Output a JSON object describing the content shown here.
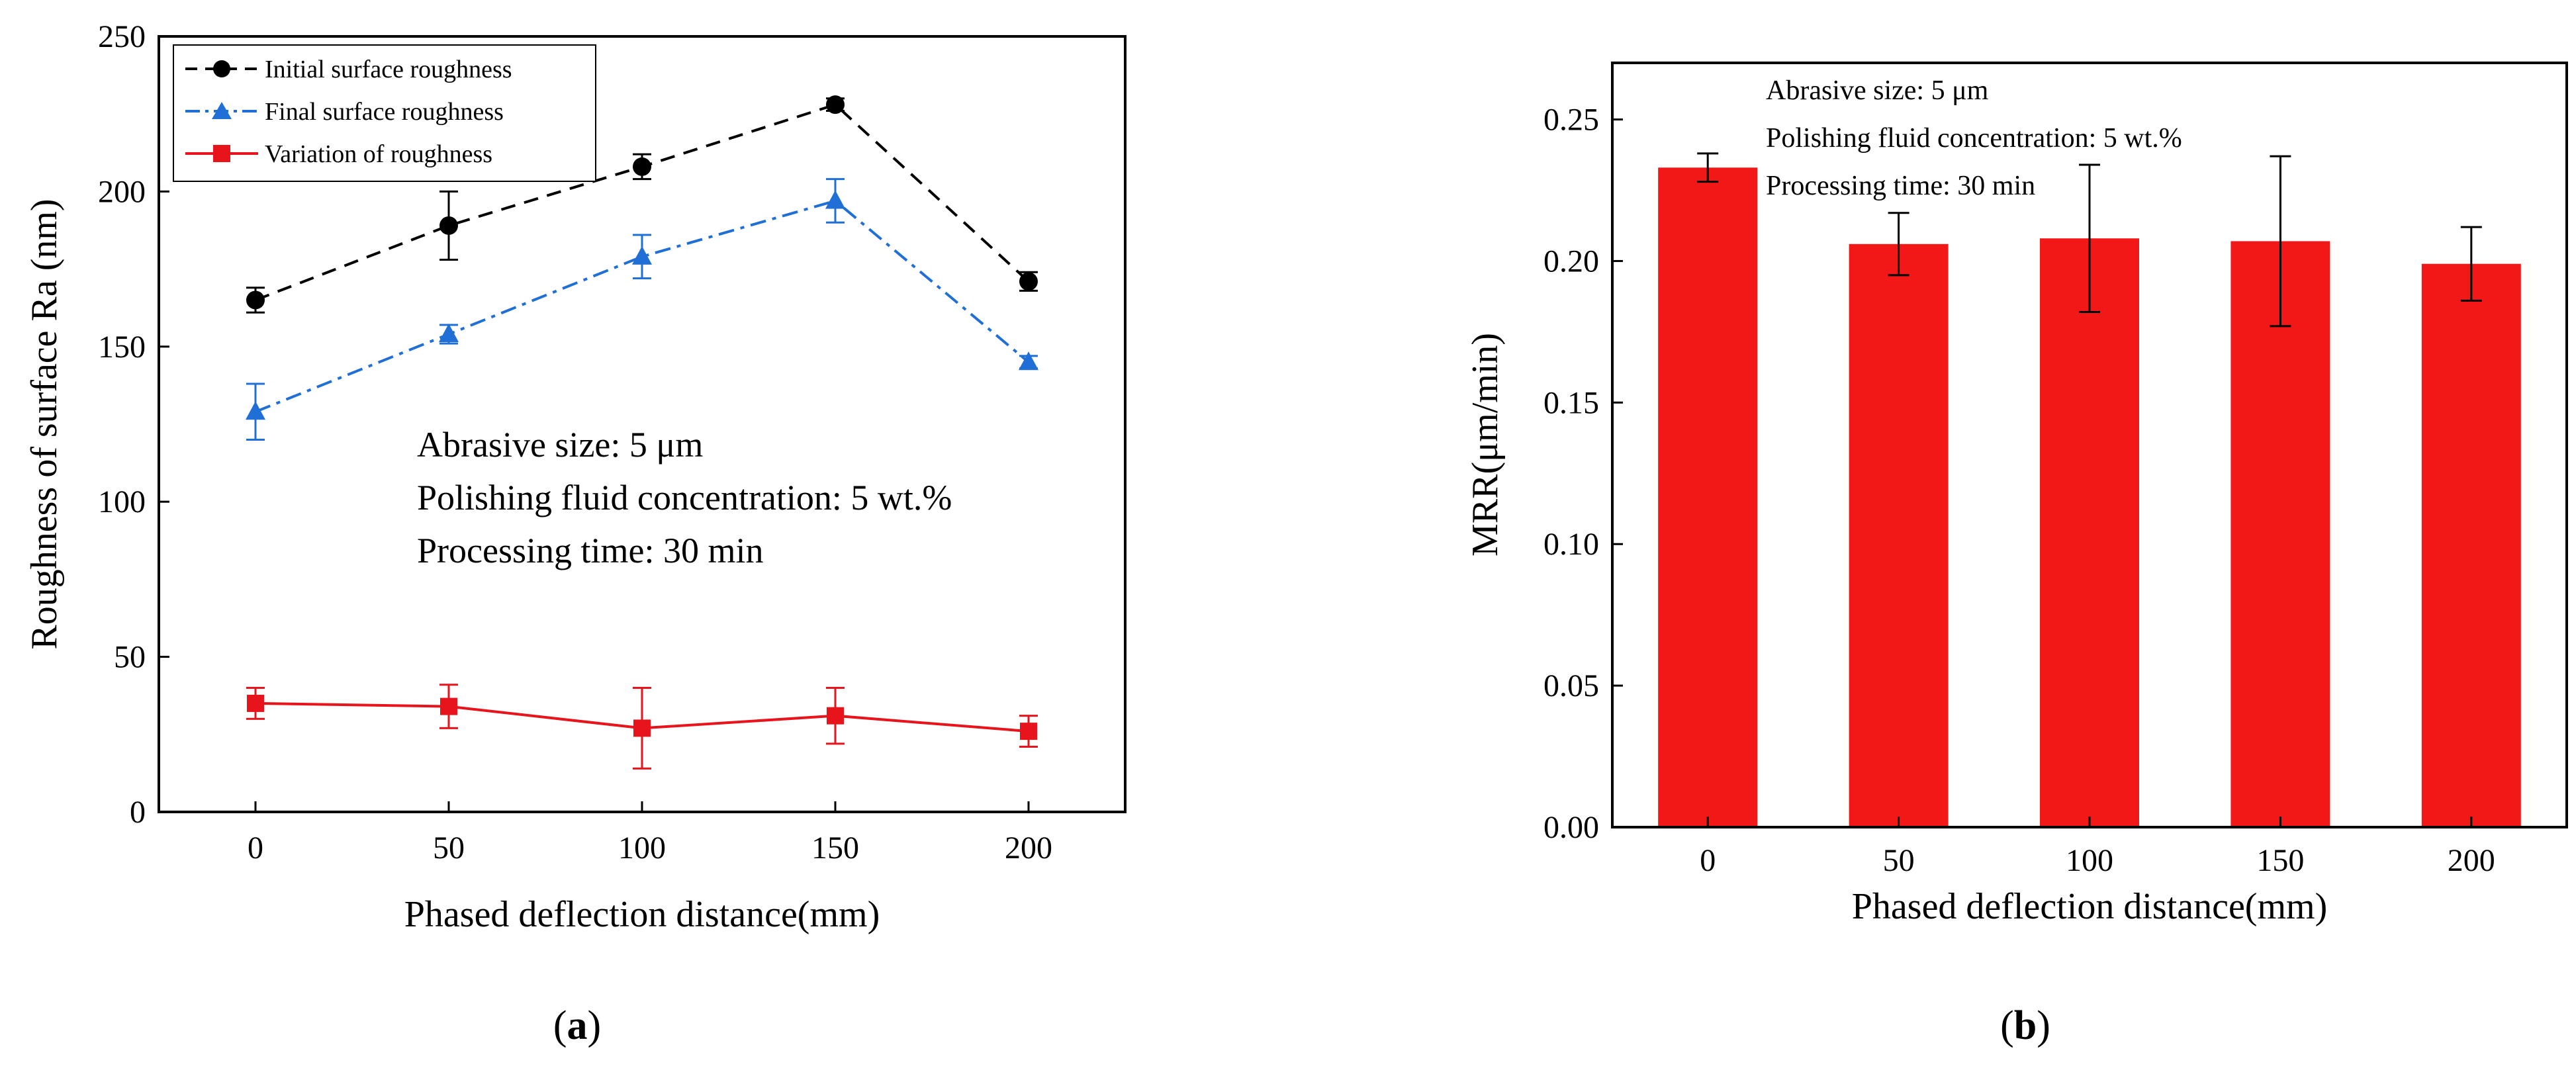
{
  "chart_data": [
    {
      "type": "line",
      "panel_label": "(a)",
      "panel_letter": "a",
      "xlabel": "Phased deflection distance(mm)",
      "ylabel": "Roughness of surface Ra (nm)",
      "categories": [
        "0",
        "50",
        "100",
        "150",
        "200"
      ],
      "x": [
        0,
        50,
        100,
        150,
        200
      ],
      "xlim": [
        -25,
        225
      ],
      "ylim": [
        0,
        250
      ],
      "yticks": [
        0,
        50,
        100,
        150,
        200,
        250
      ],
      "legend_position": "top-left",
      "series": [
        {
          "name": "Initial surface roughness",
          "color": "#000000",
          "marker": "circle",
          "dash": "dashed",
          "values": [
            165,
            189,
            208,
            228,
            171
          ],
          "errors": [
            4,
            11,
            4,
            2,
            3
          ]
        },
        {
          "name": "Final surface roughness",
          "color": "#1f6fd6",
          "marker": "triangle",
          "dash": "dashdot",
          "values": [
            129,
            154,
            179,
            197,
            145
          ],
          "errors": [
            9,
            3,
            7,
            7,
            2
          ]
        },
        {
          "name": "Variation of roughness",
          "color": "#e8141b",
          "marker": "square",
          "dash": "solid",
          "values": [
            35,
            34,
            27,
            31,
            26
          ],
          "errors": [
            5,
            7,
            13,
            9,
            5
          ]
        }
      ],
      "annotations": [
        "Abrasive size: 5 μm",
        "Polishing fluid concentration: 5 wt.%",
        "Processing time: 30 min"
      ]
    },
    {
      "type": "bar",
      "panel_label": "(b)",
      "panel_letter": "b",
      "xlabel": "Phased deflection distance(mm)",
      "ylabel": "MRR(μm/min)",
      "categories": [
        "0",
        "50",
        "100",
        "150",
        "200"
      ],
      "ylim": [
        0,
        0.27
      ],
      "yticks": [
        "0.00",
        "0.05",
        "0.10",
        "0.15",
        "0.20",
        "0.25"
      ],
      "bar_color": "#f21818",
      "values": [
        0.233,
        0.206,
        0.208,
        0.207,
        0.199
      ],
      "errors": [
        0.005,
        0.011,
        0.026,
        0.03,
        0.013
      ],
      "annotations": [
        "Abrasive size: 5 μm",
        "Polishing fluid concentration: 5 wt.%",
        "Processing time: 30 min"
      ]
    }
  ]
}
